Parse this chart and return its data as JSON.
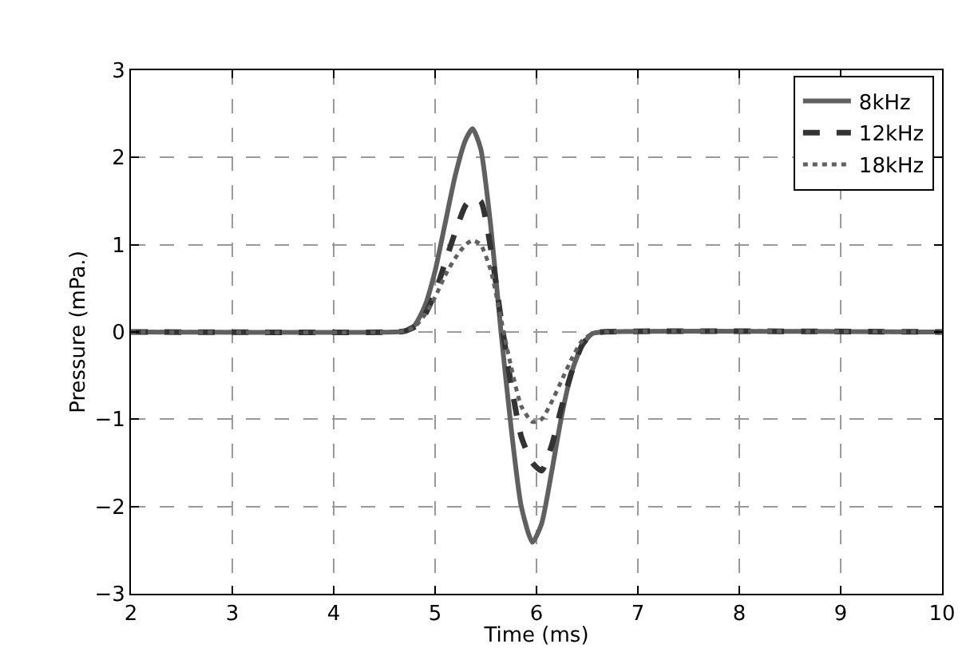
{
  "chart_data": {
    "type": "line",
    "xlabel": "Time (ms)",
    "ylabel": "Pressure (mPa.)",
    "xlim": [
      2,
      10
    ],
    "ylim": [
      -3,
      3
    ],
    "xticks": [
      2,
      3,
      4,
      5,
      6,
      7,
      8,
      9,
      10
    ],
    "yticks": [
      -3,
      -2,
      -1,
      0,
      1,
      2,
      3
    ],
    "grid": true,
    "legend": "top right",
    "marker": "none",
    "x": [
      2,
      4.6,
      4.7,
      4.8,
      4.9,
      5.0,
      5.1,
      5.2,
      5.3,
      5.37,
      5.45,
      5.55,
      5.65,
      5.75,
      5.85,
      5.96,
      6.05,
      6.15,
      6.25,
      6.35,
      6.45,
      6.55,
      6.65,
      10
    ],
    "series": [
      {
        "name": "8kHz",
        "color": "#606060",
        "line_style": "solid",
        "values": [
          0,
          0,
          0.01,
          0.08,
          0.3,
          0.7,
          1.25,
          1.8,
          2.2,
          2.33,
          2.1,
          1.2,
          0,
          -1.1,
          -2.0,
          -2.41,
          -2.2,
          -1.6,
          -0.95,
          -0.45,
          -0.15,
          -0.02,
          0,
          0
        ]
      },
      {
        "name": "12kHz",
        "color": "#333333",
        "line_style": "dashed",
        "values": [
          0,
          0,
          0.01,
          0.06,
          0.2,
          0.45,
          0.8,
          1.15,
          1.45,
          1.53,
          1.5,
          0.95,
          0.15,
          -0.6,
          -1.2,
          -1.5,
          -1.59,
          -1.3,
          -0.85,
          -0.45,
          -0.15,
          -0.02,
          0,
          0
        ]
      },
      {
        "name": "18kHz",
        "color": "#606060",
        "line_style": "dotted",
        "values": [
          0,
          0,
          0.01,
          0.06,
          0.2,
          0.4,
          0.65,
          0.85,
          1.0,
          1.05,
          1.0,
          0.7,
          0.15,
          -0.4,
          -0.85,
          -1.03,
          -1.0,
          -0.8,
          -0.55,
          -0.3,
          -0.1,
          -0.02,
          0,
          0
        ]
      }
    ]
  }
}
